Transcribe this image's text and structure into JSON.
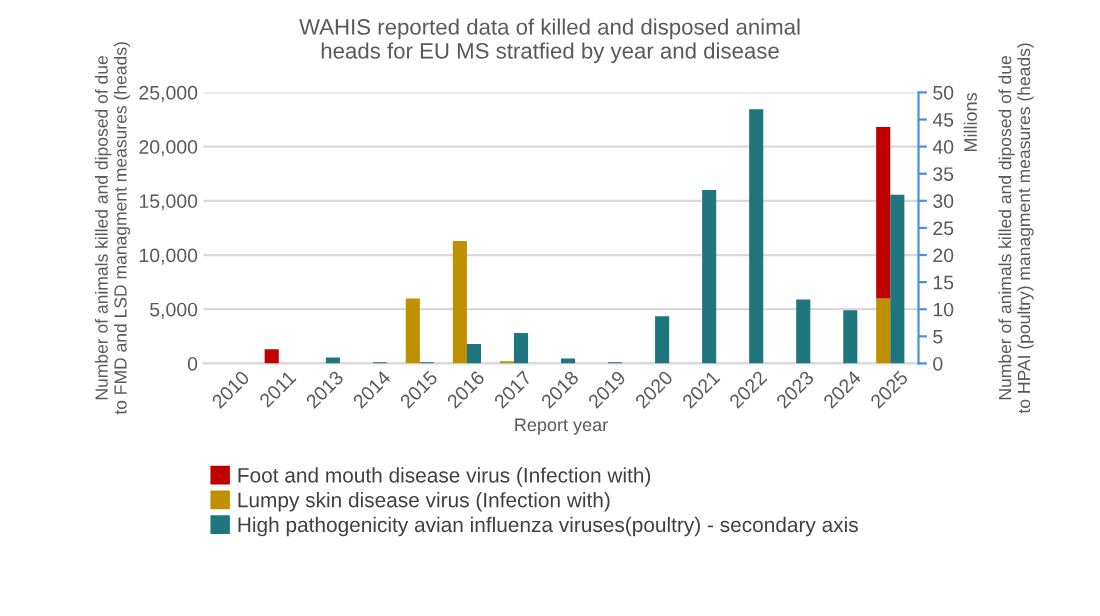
{
  "chart_data": {
    "type": "bar",
    "title": "WAHIS reported data of killed and disposed animal heads for EU MS stratfied by year and disease",
    "xlabel": "Report year",
    "ylabel": "Number of animals killed and diposed of due to FMD and LSD managment measures (heads)",
    "y2label": "Number of animals killed and diposed of due to HPAI (poultry) managment measures (heads)",
    "annotations": [
      "Millions"
    ],
    "categories": [
      "2010",
      "2011",
      "2013",
      "2014",
      "2015",
      "2016",
      "2017",
      "2018",
      "2019",
      "2020",
      "2021",
      "2022",
      "2023",
      "2024",
      "2025"
    ],
    "stacked": true,
    "series": [
      {
        "name": "Lumpy skin disease virus (Infection with)",
        "color": "#bf9000",
        "values": [
          null,
          null,
          null,
          null,
          6000,
          11300,
          200,
          null,
          null,
          null,
          null,
          null,
          null,
          null,
          6000
        ]
      },
      {
        "name": "Foot and mouth disease virus (Infection with)",
        "color": "#c00000",
        "values": [
          null,
          1300,
          null,
          null,
          null,
          null,
          null,
          null,
          null,
          null,
          null,
          null,
          null,
          null,
          15800
        ]
      },
      {
        "name": "High pathogenicity avian influenza viruses(poultry) - secondary axis",
        "color": "#1f767e",
        "axis": "y2",
        "values": [
          null,
          null,
          1.1,
          0.2,
          0.2,
          3.6,
          5.6,
          0.9,
          0.2,
          8.7,
          32.0,
          46.9,
          11.8,
          9.8,
          31.1
        ]
      }
    ],
    "ylim": [
      0,
      25000
    ],
    "yticks": [
      {
        "value": 0,
        "label": "0"
      },
      {
        "value": 5000,
        "label": "5,000"
      },
      {
        "value": 10000,
        "label": "10,000"
      },
      {
        "value": 15000,
        "label": "15,000"
      },
      {
        "value": 20000,
        "label": "20,000"
      },
      {
        "value": 25000,
        "label": "25,000"
      }
    ],
    "y2lim": [
      0,
      50
    ],
    "y2ticks": [
      0,
      5,
      10,
      15,
      20,
      25,
      30,
      35,
      40,
      45,
      50
    ],
    "grid": "y",
    "legend": "bottom"
  }
}
